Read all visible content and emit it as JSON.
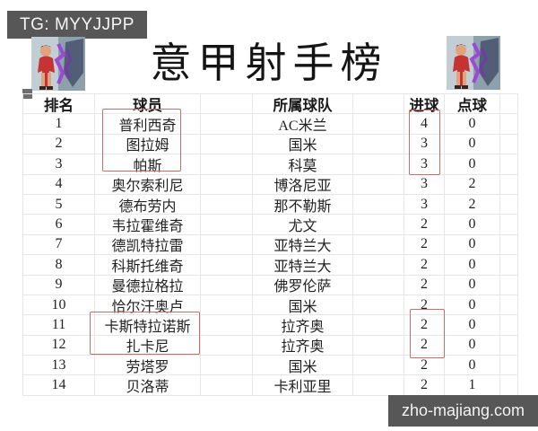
{
  "badges": {
    "tg": "TG: MYYJJPP",
    "watermark": "zho-majiang.com"
  },
  "title": "意甲射手榜",
  "colors": {
    "highlight_box": "#c1706b",
    "badge_background": "#575757",
    "gridline": "#e6e6e6"
  },
  "icons": {
    "avatar_left": "basketball-players-avatar",
    "avatar_right": "basketball-players-avatar"
  },
  "table": {
    "headers": {
      "rank": "排名",
      "player": "球员",
      "team": "所属球队",
      "goals": "进球",
      "penalties": "点球"
    },
    "rows": [
      {
        "rank": "1",
        "player": "普利西奇",
        "team": "AC米兰",
        "goals": "4",
        "penalties": "0"
      },
      {
        "rank": "2",
        "player": "图拉姆",
        "team": "国米",
        "goals": "3",
        "penalties": "0"
      },
      {
        "rank": "3",
        "player": "帕斯",
        "team": "科莫",
        "goals": "3",
        "penalties": "0"
      },
      {
        "rank": "4",
        "player": "奥尔索利尼",
        "team": "博洛尼亚",
        "goals": "3",
        "penalties": "2"
      },
      {
        "rank": "5",
        "player": "德布劳内",
        "team": "那不勒斯",
        "goals": "3",
        "penalties": "2"
      },
      {
        "rank": "6",
        "player": "韦拉霍维奇",
        "team": "尤文",
        "goals": "2",
        "penalties": "0"
      },
      {
        "rank": "7",
        "player": "德凯特拉雷",
        "team": "亚特兰大",
        "goals": "2",
        "penalties": "0"
      },
      {
        "rank": "8",
        "player": "科斯托维奇",
        "team": "亚特兰大",
        "goals": "2",
        "penalties": "0"
      },
      {
        "rank": "9",
        "player": "曼德拉格拉",
        "team": "佛罗伦萨",
        "goals": "2",
        "penalties": "0"
      },
      {
        "rank": "10",
        "player": "恰尔汗奥卢",
        "team": "国米",
        "goals": "2",
        "penalties": "0"
      },
      {
        "rank": "11",
        "player": "卡斯特拉诺斯",
        "team": "拉齐奥",
        "goals": "2",
        "penalties": "0"
      },
      {
        "rank": "12",
        "player": "扎卡尼",
        "team": "拉齐奥",
        "goals": "2",
        "penalties": "0"
      },
      {
        "rank": "13",
        "player": "劳塔罗",
        "team": "国米",
        "goals": "2",
        "penalties": "0"
      },
      {
        "rank": "14",
        "player": "贝洛蒂",
        "team": "卡利亚里",
        "goals": "2",
        "penalties": "1"
      }
    ]
  }
}
